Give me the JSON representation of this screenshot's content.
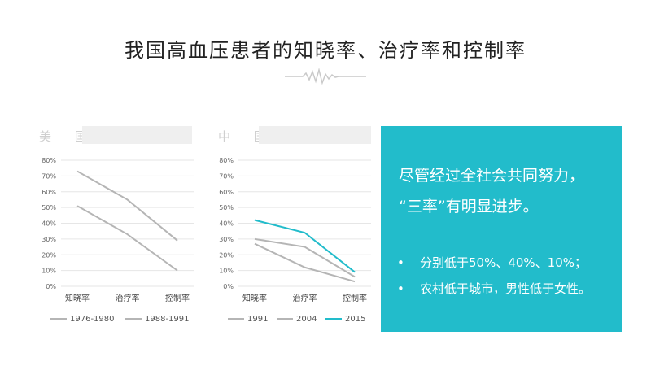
{
  "page": {
    "title": "我国高血压患者的知晓率、治疗率和控制率"
  },
  "colors": {
    "accent": "#22bccb",
    "gray": "#b5b5b5",
    "decor": "#c9c9c9"
  },
  "chart_data": [
    {
      "type": "line",
      "heading": "美 国",
      "categories": [
        "知晓率",
        "治疗率",
        "控制率"
      ],
      "ylim": [
        0,
        80
      ],
      "yticks": [
        "0%",
        "10%",
        "20%",
        "30%",
        "40%",
        "50%",
        "60%",
        "70%",
        "80%"
      ],
      "series": [
        {
          "name": "1976-1980",
          "values": [
            51,
            33,
            10
          ],
          "color": "#b5b5b5"
        },
        {
          "name": "1988-1991",
          "values": [
            73,
            55,
            29
          ],
          "color": "#b5b5b5"
        }
      ]
    },
    {
      "type": "line",
      "heading": "中 国",
      "categories": [
        "知晓率",
        "治疗率",
        "控制率"
      ],
      "ylim": [
        0,
        80
      ],
      "yticks": [
        "0%",
        "10%",
        "20%",
        "30%",
        "40%",
        "50%",
        "60%",
        "70%",
        "80%"
      ],
      "series": [
        {
          "name": "1991",
          "values": [
            27,
            12,
            3
          ],
          "color": "#b5b5b5"
        },
        {
          "name": "2004",
          "values": [
            30,
            25,
            6
          ],
          "color": "#b5b5b5"
        },
        {
          "name": "2015",
          "values": [
            42,
            34,
            9
          ],
          "color": "#22bccb"
        }
      ]
    }
  ],
  "panel": {
    "headline_line1": "尽管经过全社会共同努力，",
    "headline_line2": "“三率”有明显进步。",
    "bullet_char": "•",
    "bullets": [
      "分别低于50%、40%、10%；",
      "农村低于城市，男性低于女性。"
    ]
  }
}
